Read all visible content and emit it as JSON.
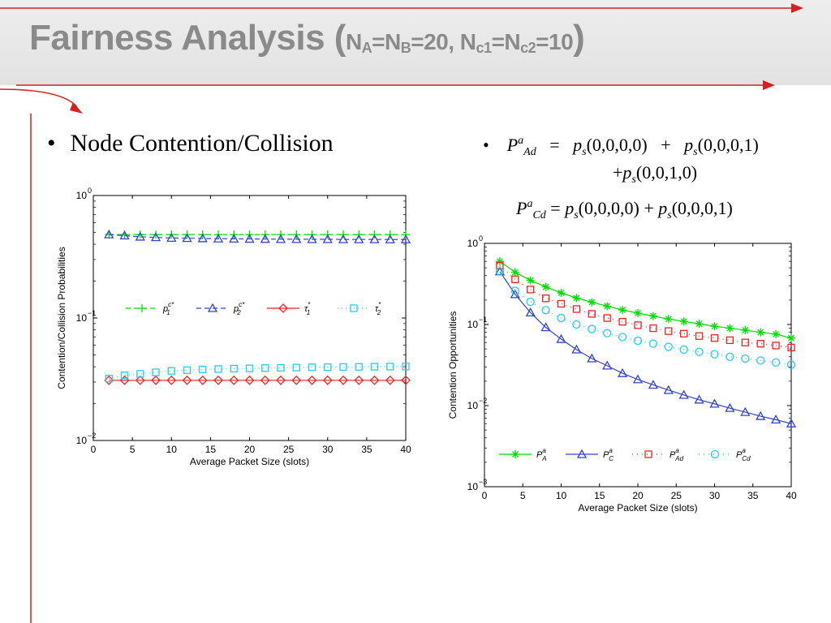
{
  "slide": {
    "title_main": "Fairness Analysis (",
    "title_sub_parts": [
      "N",
      "A",
      "=N",
      "B",
      "=20, N",
      "c1",
      "=N",
      "c2",
      "=10"
    ],
    "title_close": ")",
    "bullet_left": "Node Contention/Collision",
    "eq1": {
      "lhs_P": "P",
      "lhs_sup": "a",
      "lhs_sub": "Ad",
      "eq": "=",
      "t1_p": "p",
      "t1_sub": "s",
      "t1_args": "(0,0,0,0)",
      "plus": "+",
      "t2_args": "(0,0,0,1)",
      "line2_plus": "+",
      "t3_args": "(0,0,1,0)"
    },
    "eq2": {
      "lhs_P": "P",
      "lhs_sup": "a",
      "lhs_sub": "Cd",
      "eq": "=",
      "t1_args": "(0,0,0,0)",
      "plus": "+",
      "t2_args": "(0,0,0,1)"
    },
    "colors": {
      "title": "#8a8a8a",
      "accent_red": "#d42020",
      "green": "#00dd00",
      "blue": "#3344cc",
      "red": "#ee2222",
      "cyan": "#22ccee"
    }
  },
  "chart_data": [
    {
      "type": "line",
      "ylabel": "Contention/Collision Probabilities",
      "xlabel": "Average Packet Size (slots)",
      "yscale": "log",
      "xlim": [
        0,
        40
      ],
      "ylim": [
        0.01,
        1
      ],
      "xticks": [
        "0",
        "5",
        "10",
        "15",
        "20",
        "25",
        "30",
        "35",
        "40"
      ],
      "yticks": [
        {
          "base": "10",
          "exp": "0"
        },
        {
          "base": "10",
          "exp": "−1"
        },
        {
          "base": "10",
          "exp": "−2"
        }
      ],
      "x": [
        2,
        4,
        6,
        8,
        10,
        12,
        14,
        16,
        18,
        20,
        22,
        24,
        26,
        28,
        30,
        32,
        34,
        36,
        38,
        40
      ],
      "legend_position": "center",
      "series": [
        {
          "name": "p1c*",
          "label_p": "p",
          "label_sub": "1",
          "label_sup": "c*",
          "color": "#00dd00",
          "marker": "plus",
          "dash": "6,4",
          "values": [
            0.48,
            0.48,
            0.48,
            0.48,
            0.48,
            0.48,
            0.48,
            0.48,
            0.48,
            0.48,
            0.48,
            0.48,
            0.48,
            0.48,
            0.48,
            0.48,
            0.48,
            0.48,
            0.48,
            0.48
          ]
        },
        {
          "name": "p2c*",
          "label_p": "p",
          "label_sub": "2",
          "label_sup": "c*",
          "color": "#3344cc",
          "marker": "triangle",
          "dash": "6,4",
          "values": [
            0.48,
            0.47,
            0.46,
            0.455,
            0.45,
            0.448,
            0.446,
            0.444,
            0.443,
            0.442,
            0.441,
            0.44,
            0.44,
            0.439,
            0.439,
            0.438,
            0.438,
            0.438,
            0.437,
            0.437
          ]
        },
        {
          "name": "τ1*",
          "label_p": "τ",
          "label_sub": "1",
          "label_sup": "*",
          "color": "#ee2222",
          "marker": "diamond",
          "dash": "",
          "values": [
            0.031,
            0.031,
            0.031,
            0.031,
            0.031,
            0.031,
            0.031,
            0.031,
            0.031,
            0.031,
            0.031,
            0.031,
            0.031,
            0.031,
            0.031,
            0.031,
            0.031,
            0.031,
            0.031,
            0.031
          ]
        },
        {
          "name": "τ2*",
          "label_p": "τ",
          "label_sub": "2",
          "label_sup": "*",
          "color": "#22ccee",
          "marker": "square",
          "dash": "1,4",
          "values": [
            0.032,
            0.034,
            0.035,
            0.036,
            0.037,
            0.0375,
            0.038,
            0.0383,
            0.0386,
            0.0388,
            0.039,
            0.0392,
            0.0394,
            0.0396,
            0.0397,
            0.0398,
            0.0399,
            0.04,
            0.0401,
            0.0402
          ]
        }
      ]
    },
    {
      "type": "line",
      "ylabel": "Contention Opportunities",
      "xlabel": "Average Packet Size (slots)",
      "yscale": "log",
      "xlim": [
        0,
        40
      ],
      "ylim": [
        0.001,
        1
      ],
      "xticks": [
        "0",
        "5",
        "10",
        "15",
        "20",
        "25",
        "30",
        "35",
        "40"
      ],
      "yticks": [
        {
          "base": "10",
          "exp": "0"
        },
        {
          "base": "10",
          "exp": "−1"
        },
        {
          "base": "10",
          "exp": "−2"
        },
        {
          "base": "10",
          "exp": "−3"
        }
      ],
      "x": [
        2,
        4,
        6,
        8,
        10,
        12,
        14,
        16,
        18,
        20,
        22,
        24,
        26,
        28,
        30,
        32,
        34,
        36,
        38,
        40
      ],
      "legend_position": "bottom",
      "series": [
        {
          "name": "PAa",
          "label_p": "P",
          "label_sub": "A",
          "label_sup": "a",
          "color": "#00dd00",
          "marker": "star",
          "dash": "",
          "values": [
            0.6,
            0.44,
            0.35,
            0.29,
            0.245,
            0.212,
            0.188,
            0.168,
            0.151,
            0.138,
            0.127,
            0.117,
            0.109,
            0.102,
            0.095,
            0.09,
            0.085,
            0.08,
            0.076,
            0.068
          ]
        },
        {
          "name": "PCa",
          "label_p": "P",
          "label_sub": "C",
          "label_sup": "a",
          "color": "#3344cc",
          "marker": "triangle",
          "dash": "",
          "values": [
            0.45,
            0.235,
            0.14,
            0.092,
            0.066,
            0.049,
            0.038,
            0.031,
            0.025,
            0.021,
            0.018,
            0.0155,
            0.0135,
            0.0118,
            0.0105,
            0.0093,
            0.0083,
            0.0074,
            0.0067,
            0.006
          ]
        },
        {
          "name": "PAda",
          "label_p": "P",
          "label_sub": "Ad",
          "label_sup": "a",
          "color": "#ee2222",
          "marker": "square",
          "dash": "1,5",
          "values": [
            0.53,
            0.36,
            0.27,
            0.21,
            0.18,
            0.155,
            0.135,
            0.12,
            0.108,
            0.098,
            0.09,
            0.083,
            0.077,
            0.072,
            0.068,
            0.064,
            0.06,
            0.058,
            0.055,
            0.052
          ]
        },
        {
          "name": "PCda",
          "label_p": "P",
          "label_sub": "Cd",
          "label_sup": "a",
          "color": "#22ccee",
          "marker": "circle",
          "dash": "1,5",
          "values": [
            0.45,
            0.26,
            0.19,
            0.15,
            0.12,
            0.1,
            0.088,
            0.078,
            0.07,
            0.063,
            0.058,
            0.053,
            0.049,
            0.046,
            0.043,
            0.04,
            0.038,
            0.036,
            0.034,
            0.032
          ]
        }
      ]
    }
  ]
}
